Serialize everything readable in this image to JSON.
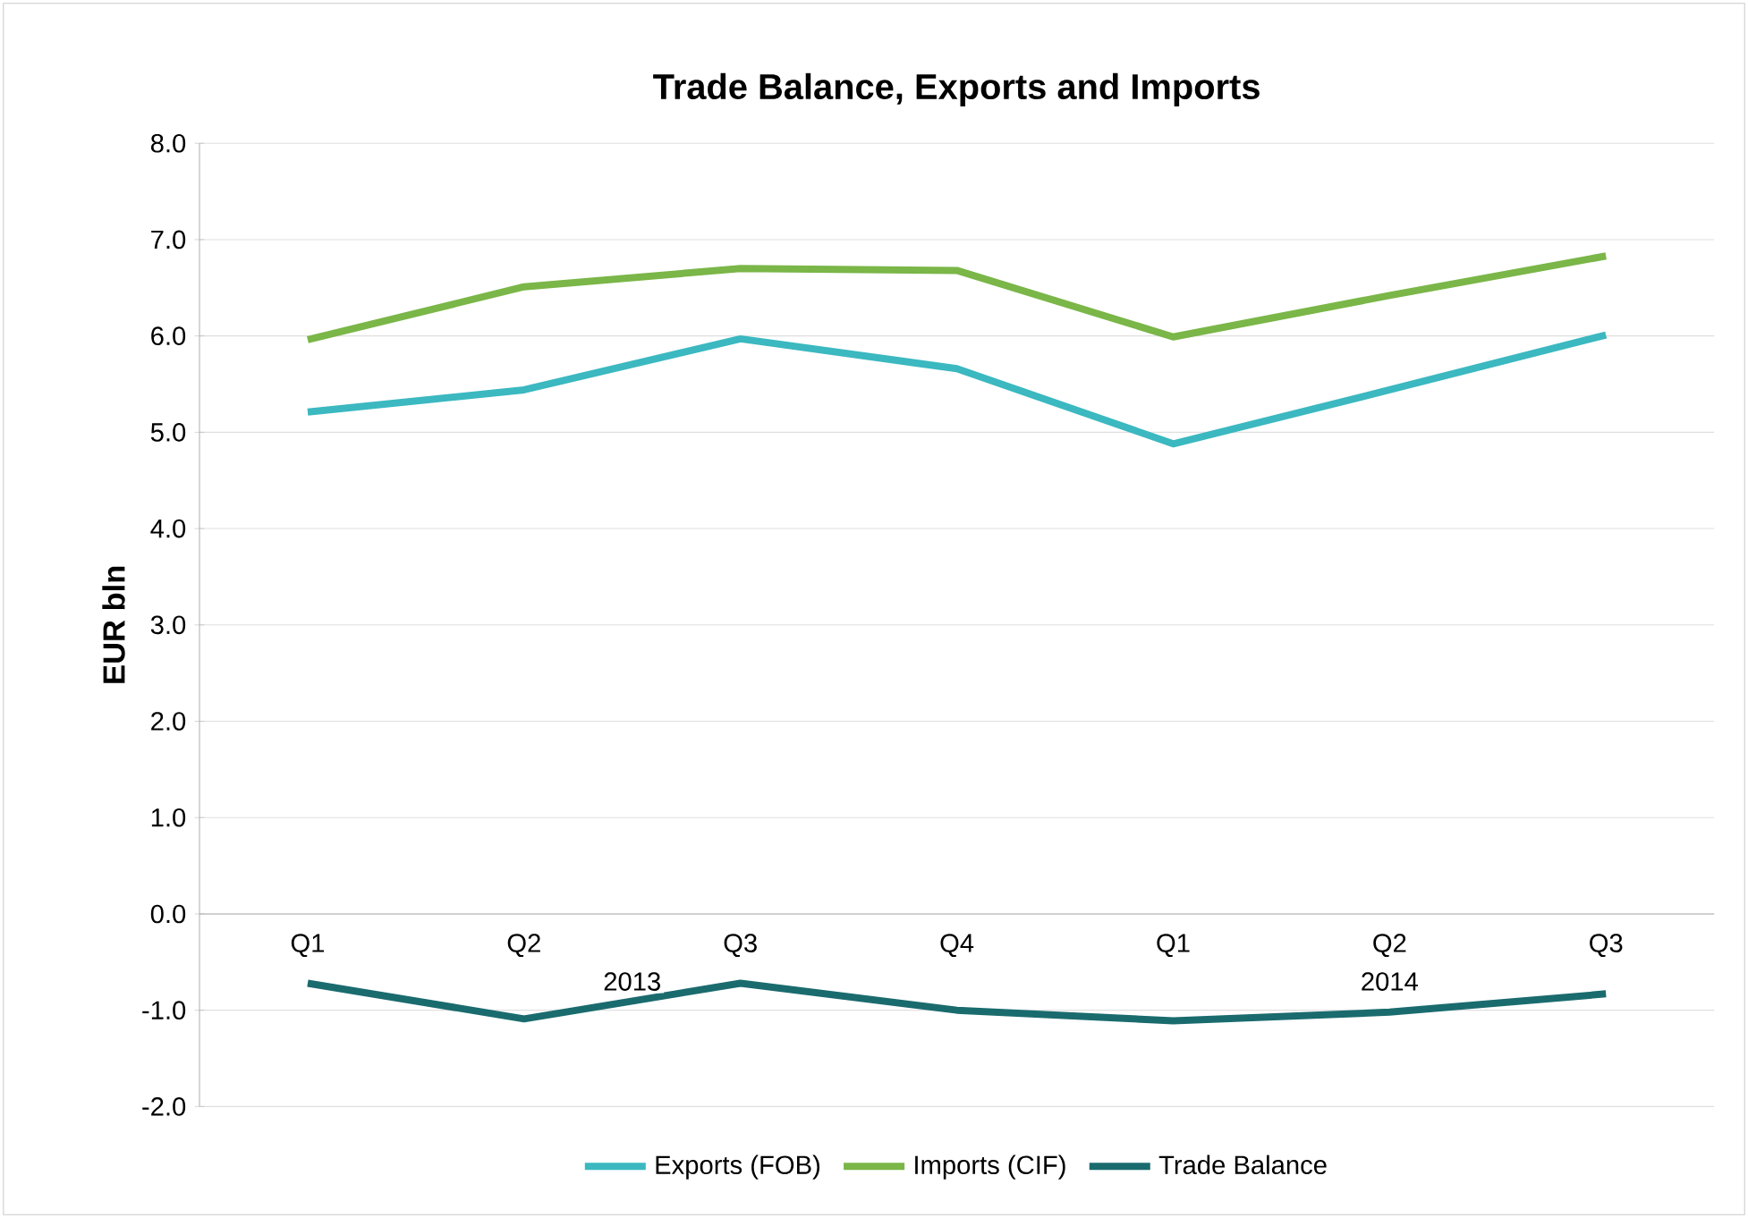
{
  "chart_data": {
    "type": "line",
    "title": "Trade Balance, Exports and Imports",
    "ylabel": "EUR bln",
    "categories": [
      "Q1",
      "Q2",
      "Q3",
      "Q4",
      "Q1",
      "Q2",
      "Q3"
    ],
    "annotations": [
      "2013",
      "2014"
    ],
    "series": [
      {
        "name": "Exports (FOB)",
        "color": "#3bb8c0",
        "values": [
          5.21,
          5.44,
          5.97,
          5.66,
          4.88,
          5.44,
          6.01
        ]
      },
      {
        "name": "Imports (CIF)",
        "color": "#7ab648",
        "values": [
          5.96,
          6.51,
          6.7,
          6.68,
          5.99,
          6.42,
          6.83
        ]
      },
      {
        "name": "Trade Balance",
        "color": "#1a6b6e",
        "values": [
          -0.72,
          -1.09,
          -0.72,
          -1.0,
          -1.11,
          -1.02,
          -0.83
        ]
      }
    ],
    "ylim": [
      -2,
      8
    ],
    "yticks": [
      {
        "value": -2,
        "label": "-2.0"
      },
      {
        "value": -1,
        "label": "-1.0"
      },
      {
        "value": 0,
        "label": "0.0"
      },
      {
        "value": 1,
        "label": "1.0"
      },
      {
        "value": 2,
        "label": "2.0"
      },
      {
        "value": 3,
        "label": "3.0"
      },
      {
        "value": 4,
        "label": "4.0"
      },
      {
        "value": 5,
        "label": "5.0"
      },
      {
        "value": 6,
        "label": "6.0"
      },
      {
        "value": 7,
        "label": "7.0"
      },
      {
        "value": 8,
        "label": "8.0"
      }
    ],
    "grid": "y",
    "legend": "bottom",
    "marker": "none",
    "line_style": "solid"
  }
}
